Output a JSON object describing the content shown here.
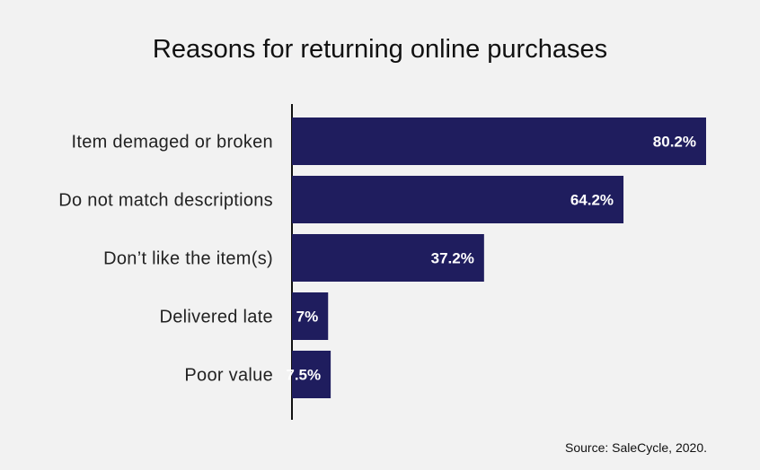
{
  "chart_data": {
    "type": "bar",
    "orientation": "horizontal",
    "title": "Reasons for returning online purchases",
    "categories": [
      "Item demaged or broken",
      "Do not match descriptions",
      "Don’t like the item(s)",
      "Delivered late",
      "Poor value"
    ],
    "values": [
      80.2,
      64.2,
      37.2,
      7,
      7.5
    ],
    "value_labels": [
      "80.2%",
      "64.2%",
      "37.2%",
      "7%",
      "7.5%"
    ],
    "unit": "%",
    "xlim": [
      0,
      80.2
    ],
    "grid": false,
    "legend": "none",
    "bar_color": "#1f1d5e",
    "label_color": "#ffffff",
    "background": "#f2f2f2",
    "source": "Source: SaleCycle, 2020."
  }
}
